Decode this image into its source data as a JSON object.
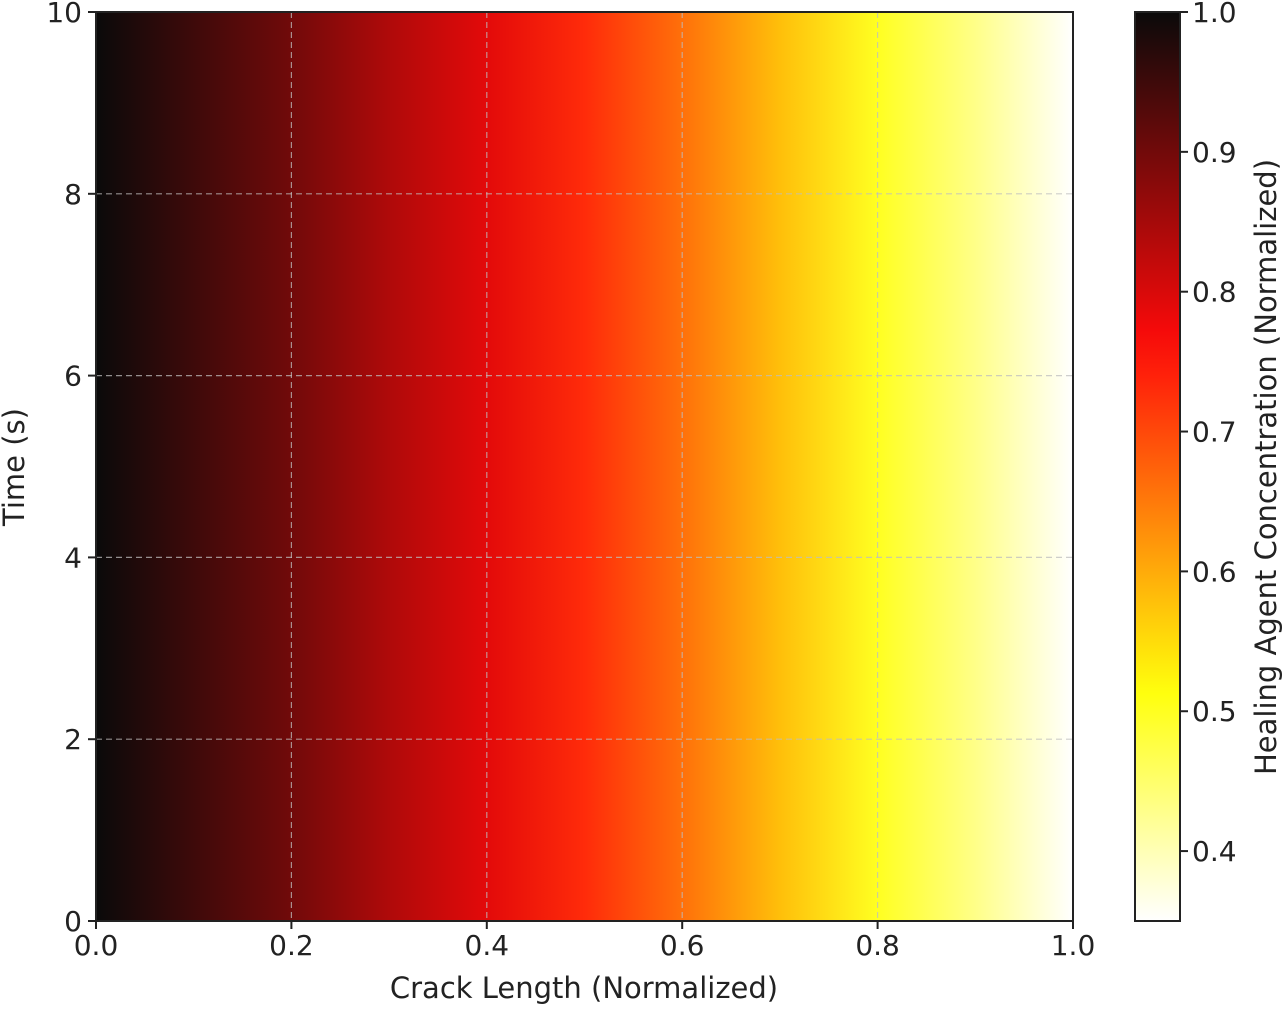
{
  "chart_data": {
    "type": "heatmap",
    "title": "",
    "xlabel": "Crack Length (Normalized)",
    "ylabel": "Time (s)",
    "colorbar_label": "Healing Agent Concentration (Normalized)",
    "colormap": "hot_r",
    "x_range": [
      0.0,
      1.0
    ],
    "y_range": [
      0,
      10
    ],
    "colorbar_range": [
      0.35,
      1.0
    ],
    "x_ticks": [
      "0.0",
      "0.2",
      "0.4",
      "0.6",
      "0.8",
      "1.0"
    ],
    "y_ticks": [
      "0",
      "2",
      "4",
      "6",
      "8",
      "10"
    ],
    "colorbar_ticks": [
      "0.4",
      "0.5",
      "0.6",
      "0.7",
      "0.8",
      "0.9",
      "1.0"
    ],
    "grid": true,
    "value_profile": {
      "description_of_axis": "concentration varies along crack length, constant over time",
      "x": [
        0.0,
        0.1,
        0.2,
        0.3,
        0.4,
        0.5,
        0.6,
        0.7,
        0.8,
        0.9,
        1.0
      ],
      "concentration": [
        1.0,
        0.95,
        0.9,
        0.84,
        0.79,
        0.73,
        0.66,
        0.58,
        0.5,
        0.43,
        0.35
      ]
    }
  }
}
